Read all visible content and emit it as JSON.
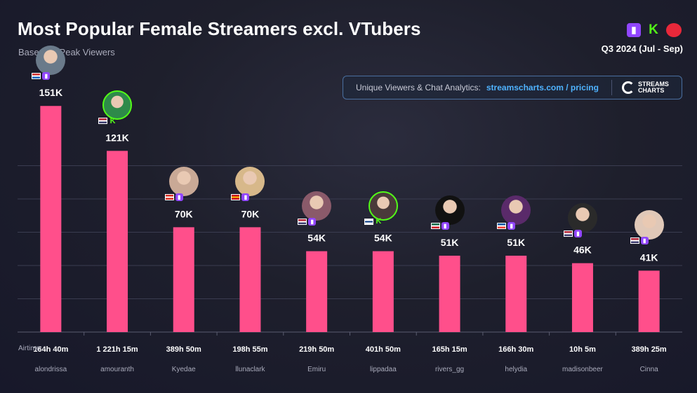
{
  "header": {
    "title": "Most Popular Female Streamers excl. VTubers",
    "subtitle": "Based on Peak Viewers",
    "period": "Q3 2024 (Jul - Sep)",
    "platform_icons": [
      "twitch-icon",
      "kick-icon",
      "youtube-icon"
    ]
  },
  "promo": {
    "text": "Unique Viewers & Chat Analytics:",
    "link": "streamscharts.com / pricing",
    "logo_line1": "STREAMS",
    "logo_line2": "CHARTS"
  },
  "colors": {
    "bar": "#ff4f8b",
    "accent_link": "#4fb3ff",
    "twitch": "#9146ff",
    "kick": "#53fc18"
  },
  "chart_data": {
    "type": "bar",
    "categories": [
      "alondrissa",
      "amouranth",
      "Kyedae",
      "llunaclark",
      "Emiru",
      "lippadaa",
      "rivers_gg",
      "helydia",
      "madisonbeer",
      "Cinna"
    ],
    "values": [
      151000,
      121000,
      70000,
      70000,
      54000,
      54000,
      51000,
      51000,
      46000,
      41000
    ],
    "value_labels": [
      "151K",
      "121K",
      "70K",
      "70K",
      "54K",
      "54K",
      "51K",
      "51K",
      "46K",
      "41K"
    ],
    "airtime_label": "Airtime:",
    "airtime": [
      "164h 40m",
      "1 221h 15m",
      "389h 50m",
      "198h 55m",
      "219h 50m",
      "401h 50m",
      "165h 15m",
      "166h 30m",
      "10h 5m",
      "389h 25m"
    ],
    "platform": [
      "twitch",
      "kick",
      "twitch",
      "twitch",
      "twitch",
      "kick",
      "twitch",
      "twitch",
      "twitch",
      "twitch"
    ],
    "flag": [
      "pr",
      "us",
      "ca",
      "es",
      "us",
      "fi",
      "mx",
      "fr",
      "us",
      "us"
    ],
    "ylim": [
      0,
      160000
    ],
    "grid": true
  }
}
